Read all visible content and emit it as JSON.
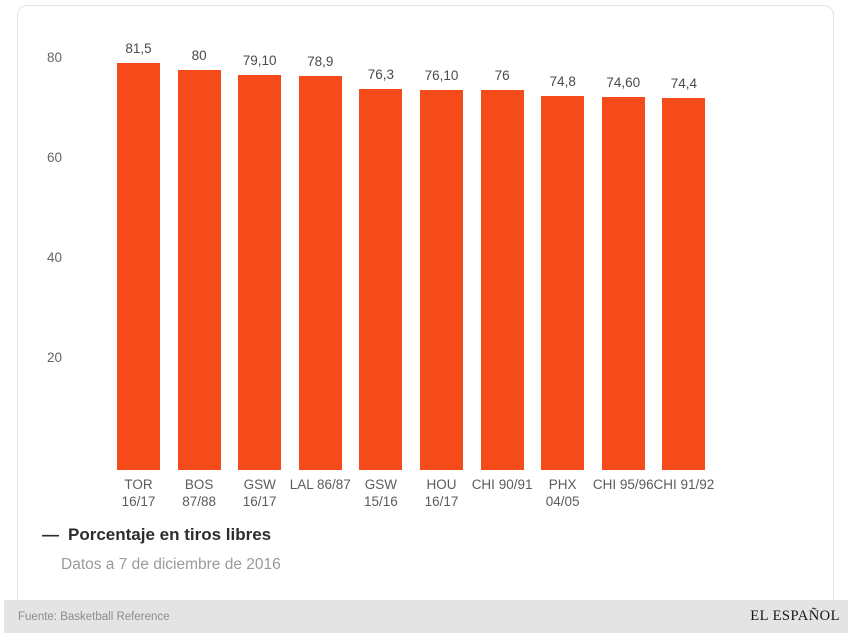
{
  "chart_data": {
    "type": "bar",
    "title": "",
    "series_name": "Porcentaje en tiros libres",
    "categories": [
      [
        "TOR",
        "16/17"
      ],
      [
        "BOS",
        "87/88"
      ],
      [
        "GSW",
        "16/17"
      ],
      [
        "LAL 86/87"
      ],
      [
        "GSW",
        "15/16"
      ],
      [
        "HOU",
        "16/17"
      ],
      [
        "CHI 90/91"
      ],
      [
        "PHX",
        "04/05"
      ],
      [
        "CHI 95/96"
      ],
      [
        "CHI 91/92"
      ]
    ],
    "values": [
      81.5,
      80,
      79.1,
      78.9,
      76.3,
      76.1,
      76,
      74.8,
      74.6,
      74.4
    ],
    "value_labels": [
      "81,5",
      "80",
      "79,10",
      "78,9",
      "76,3",
      "76,10",
      "76",
      "74,8",
      "74,60",
      "74,4"
    ],
    "y_ticks": [
      20,
      40,
      60,
      80
    ],
    "ylim": [
      0,
      84
    ],
    "grid": "off",
    "legend_position": "bottom-left",
    "bar_color": "#f54a19"
  },
  "legend": {
    "dash": "—",
    "label": "Porcentaje en tiros libres"
  },
  "note": {
    "text": "Datos a 7 de diciembre de 2016"
  },
  "footer": {
    "source": "Fuente: Basketball Reference",
    "brand": "EL ESPAÑOL"
  },
  "colors": {
    "bar": "#f54a19",
    "card_border": "#e2e2e2",
    "footer_bg": "#e4e4e4",
    "axis_text": "#666666",
    "value_text": "#4a4a4a"
  }
}
